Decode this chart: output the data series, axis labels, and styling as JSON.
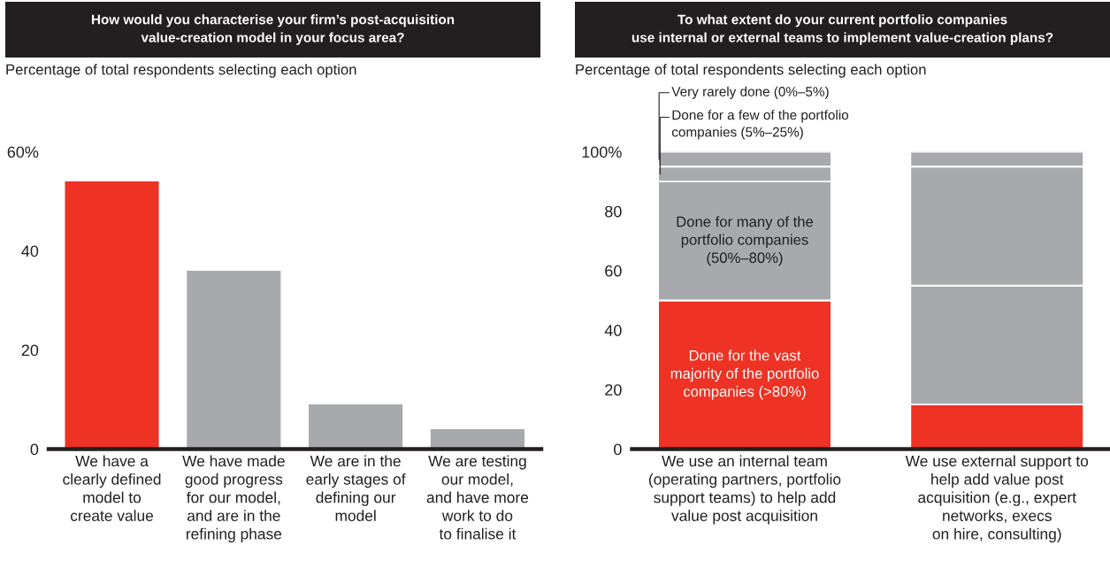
{
  "chart_data": [
    {
      "type": "bar",
      "title": "How would you characterise your firm’s post-acquisition\nvalue-creation model in your focus area?",
      "subtitle": "Percentage of total respondents selecting each option",
      "categories": [
        "We have a\nclearly defined\nmodel to\ncreate value",
        "We have made\ngood progress\nfor our model,\nand are in the\nrefining phase",
        "We are in the\nearly stages of\ndefining our\nmodel",
        "We are testing\nour model,\nand have more\nwork to do\nto finalise it"
      ],
      "values": [
        54,
        36,
        9,
        4
      ],
      "colors": [
        "#ee3224",
        "#a7a9ac",
        "#a7a9ac",
        "#a7a9ac"
      ],
      "ylim": [
        0,
        60
      ],
      "yticks": [
        0,
        20,
        40,
        {
          "value": 60,
          "label": "60%"
        }
      ],
      "grid": false
    },
    {
      "type": "bar",
      "stacked": true,
      "title": "To what extent do your current portfolio companies\nuse internal or external teams to implement value-creation plans?",
      "subtitle": "Percentage of total respondents selecting each option",
      "categories": [
        "We use an internal team\n(operating partners, portfolio\nsupport teams) to help add\nvalue post acquisition",
        "We use external support to\nhelp add value post\nacquisition (e.g., expert\nnetworks, execs\non hire, consulting)"
      ],
      "series": [
        {
          "name": "Done for the vast\nmajority of the portfolio\ncompanies (>80%)",
          "color": "#ee3224",
          "values": [
            50,
            15
          ]
        },
        {
          "name": "Done for many of the\nportfolio companies\n(50%–80%)",
          "color": "#a7a9ac",
          "values": [
            40,
            40
          ]
        },
        {
          "name": "Done for a few of the portfolio\ncompanies (5%–25%)",
          "color": "#a7a9ac",
          "values": [
            5,
            40
          ]
        },
        {
          "name": "Very rarely done (0%–5%)",
          "color": "#a7a9ac",
          "values": [
            5,
            5
          ]
        }
      ],
      "ylim": [
        0,
        100
      ],
      "yticks": [
        0,
        20,
        40,
        60,
        80,
        {
          "value": 100,
          "label": "100%"
        }
      ],
      "grid": false
    }
  ]
}
